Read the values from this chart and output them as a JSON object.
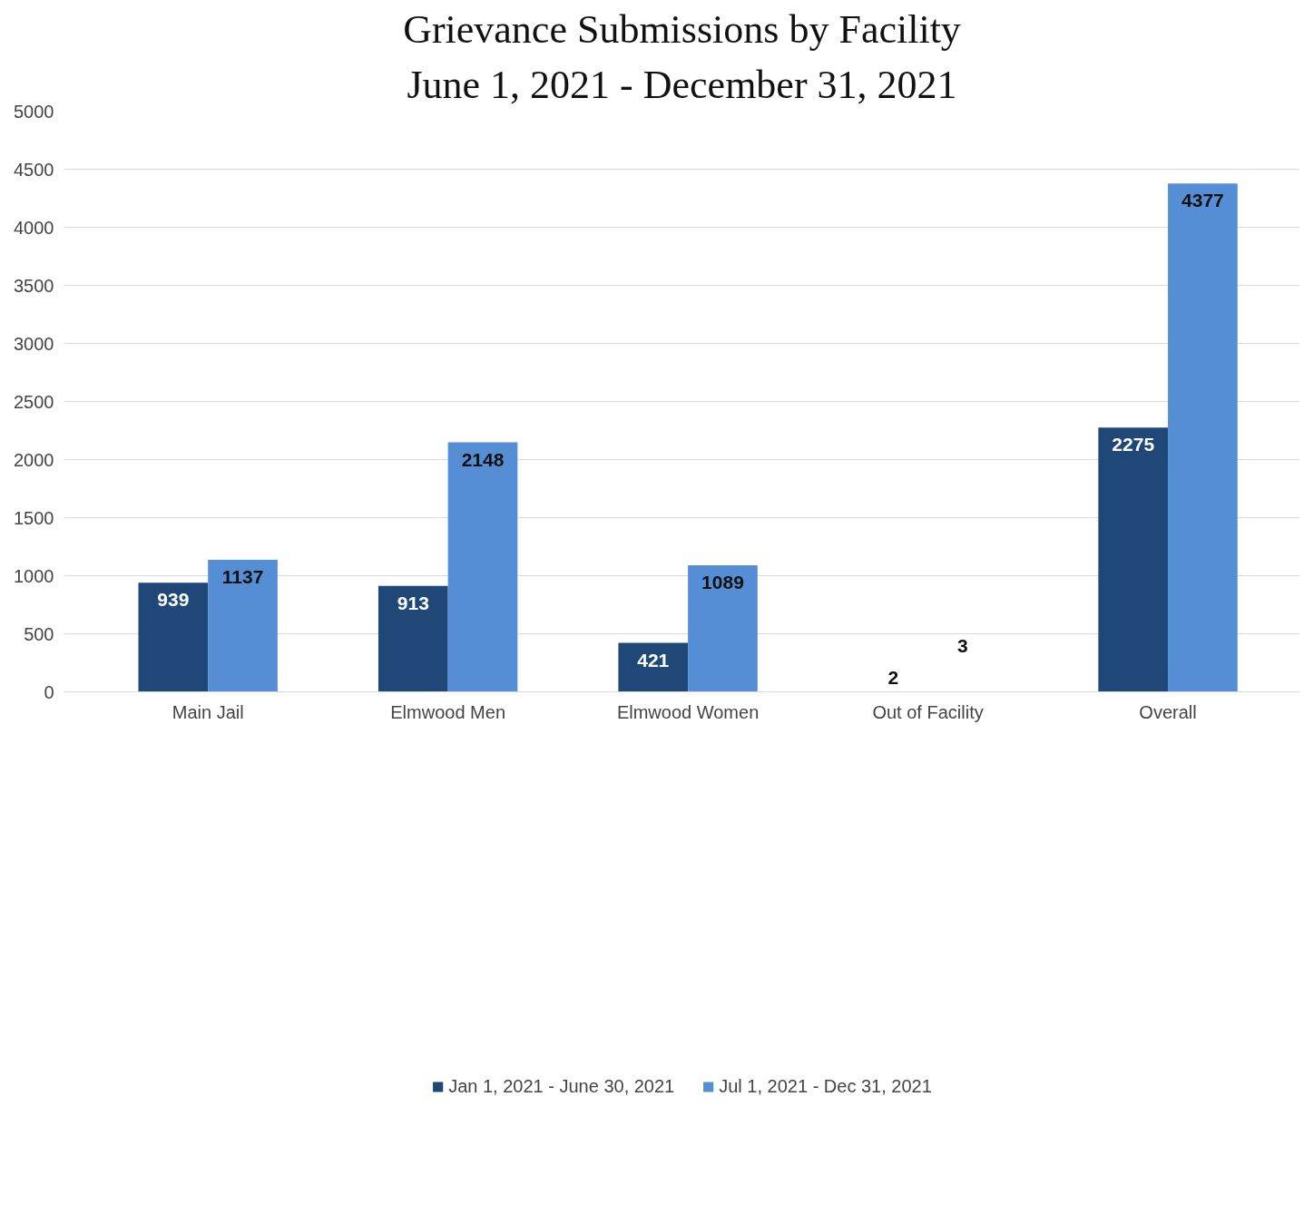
{
  "chart_data": {
    "type": "bar",
    "title": "Grievance Submissions by Facility",
    "subtitle": "June 1, 2021 - December 31, 2021",
    "categories": [
      "Main Jail",
      "Elmwood Men",
      "Elmwood Women",
      "Out of Facility",
      "Overall"
    ],
    "series": [
      {
        "name": "Jan 1, 2021 - June 30, 2021",
        "color": "#1f4778",
        "values": [
          939,
          913,
          421,
          2,
          2275
        ]
      },
      {
        "name": "Jul 1, 2021 - Dec 31, 2021",
        "color": "#558ed5",
        "values": [
          1137,
          2148,
          1089,
          3,
          4377
        ]
      }
    ],
    "ylim": [
      0,
      5000
    ],
    "yticks": [
      0,
      500,
      1000,
      1500,
      2000,
      2500,
      3000,
      3500,
      4000,
      4500,
      5000
    ],
    "grid": "y",
    "legend": "bottom",
    "data_labels": true
  }
}
